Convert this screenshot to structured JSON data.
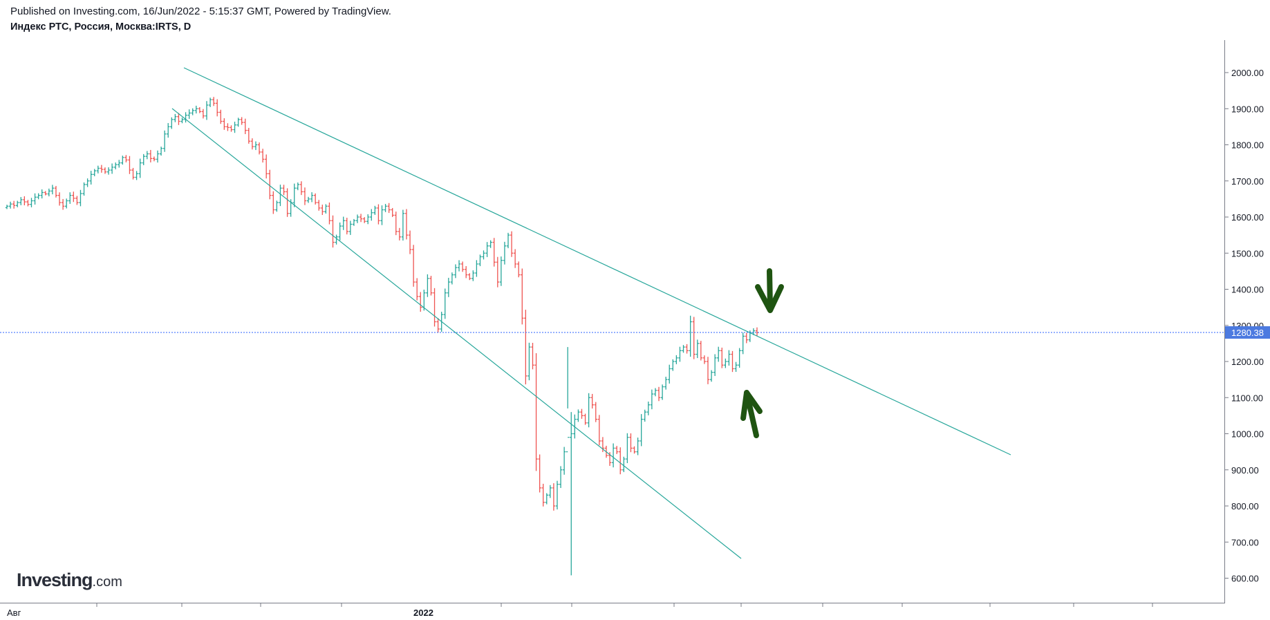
{
  "header": {
    "published": "Published on Investing.com, 16/Jun/2022 - 5:15:37 GMT, Powered by TradingView.",
    "symbol": "Индекс РТС, Россия, Москва:IRTS, D"
  },
  "logo": {
    "bold": "Investing",
    "suffix": ".com"
  },
  "colors": {
    "up": "#26a69a",
    "down": "#ef5350",
    "trendline": "#26a69a",
    "price_line": "#2962ff",
    "price_label_bg": "#4c7ae0",
    "arrow": "#1f5411",
    "axis": "#787b86"
  },
  "chart_data": {
    "type": "ohlc",
    "title": "Индекс РТС, Россия, Москва:IRTS, D",
    "x_tick_labels": [
      "Авг",
      "2022"
    ],
    "y_ticks": [
      600,
      700,
      800,
      900,
      1000,
      1100,
      1200,
      1300,
      1400,
      1500,
      1600,
      1700,
      1800,
      1900,
      2000
    ],
    "y_tick_labels": [
      "600.00",
      "700.00",
      "800.00",
      "900.00",
      "1000.00",
      "1100.00",
      "1200.00",
      "1300.00",
      "1400.00",
      "1500.00",
      "1600.00",
      "1700.00",
      "1800.00",
      "1900.00",
      "2000.00"
    ],
    "ylim": [
      510,
      2105
    ],
    "last_price": 1280.38,
    "last_price_label": "1280.38",
    "close": [
      1630,
      1636,
      1632,
      1640,
      1648,
      1642,
      1635,
      1645,
      1655,
      1660,
      1668,
      1664,
      1672,
      1680,
      1660,
      1640,
      1630,
      1645,
      1660,
      1652,
      1640,
      1665,
      1690,
      1700,
      1718,
      1728,
      1735,
      1732,
      1725,
      1730,
      1738,
      1745,
      1750,
      1765,
      1758,
      1730,
      1710,
      1720,
      1750,
      1768,
      1775,
      1762,
      1760,
      1775,
      1790,
      1830,
      1850,
      1870,
      1878,
      1865,
      1870,
      1882,
      1888,
      1895,
      1900,
      1892,
      1880,
      1910,
      1925,
      1915,
      1890,
      1865,
      1850,
      1848,
      1842,
      1855,
      1870,
      1862,
      1840,
      1810,
      1795,
      1800,
      1780,
      1760,
      1720,
      1660,
      1620,
      1640,
      1680,
      1670,
      1610,
      1640,
      1680,
      1690,
      1670,
      1645,
      1650,
      1660,
      1640,
      1625,
      1615,
      1630,
      1590,
      1530,
      1545,
      1575,
      1590,
      1560,
      1580,
      1590,
      1600,
      1595,
      1588,
      1600,
      1612,
      1625,
      1590,
      1620,
      1630,
      1620,
      1605,
      1560,
      1545,
      1610,
      1550,
      1510,
      1420,
      1380,
      1350,
      1390,
      1430,
      1390,
      1310,
      1290,
      1330,
      1390,
      1420,
      1440,
      1460,
      1470,
      1455,
      1440,
      1430,
      1445,
      1470,
      1490,
      1500,
      1520,
      1530,
      1475,
      1420,
      1480,
      1520,
      1550,
      1500,
      1470,
      1440,
      1320,
      1160,
      1240,
      1190,
      930,
      850,
      810,
      830,
      850,
      800,
      860,
      900,
      950,
      990,
      1000,
      1040,
      1060,
      1050,
      1030,
      1100,
      1080,
      1040,
      980,
      960,
      940,
      920,
      960,
      950,
      900,
      930,
      990,
      960,
      950,
      980,
      1040,
      1060,
      1080,
      1110,
      1120,
      1100,
      1130,
      1150,
      1180,
      1200,
      1210,
      1230,
      1240,
      1230,
      1310,
      1220,
      1250,
      1210,
      1200,
      1150,
      1170,
      1210,
      1230,
      1190,
      1200,
      1220,
      1180,
      1190,
      1230,
      1270,
      1260,
      1280,
      1285,
      1280
    ]
  }
}
